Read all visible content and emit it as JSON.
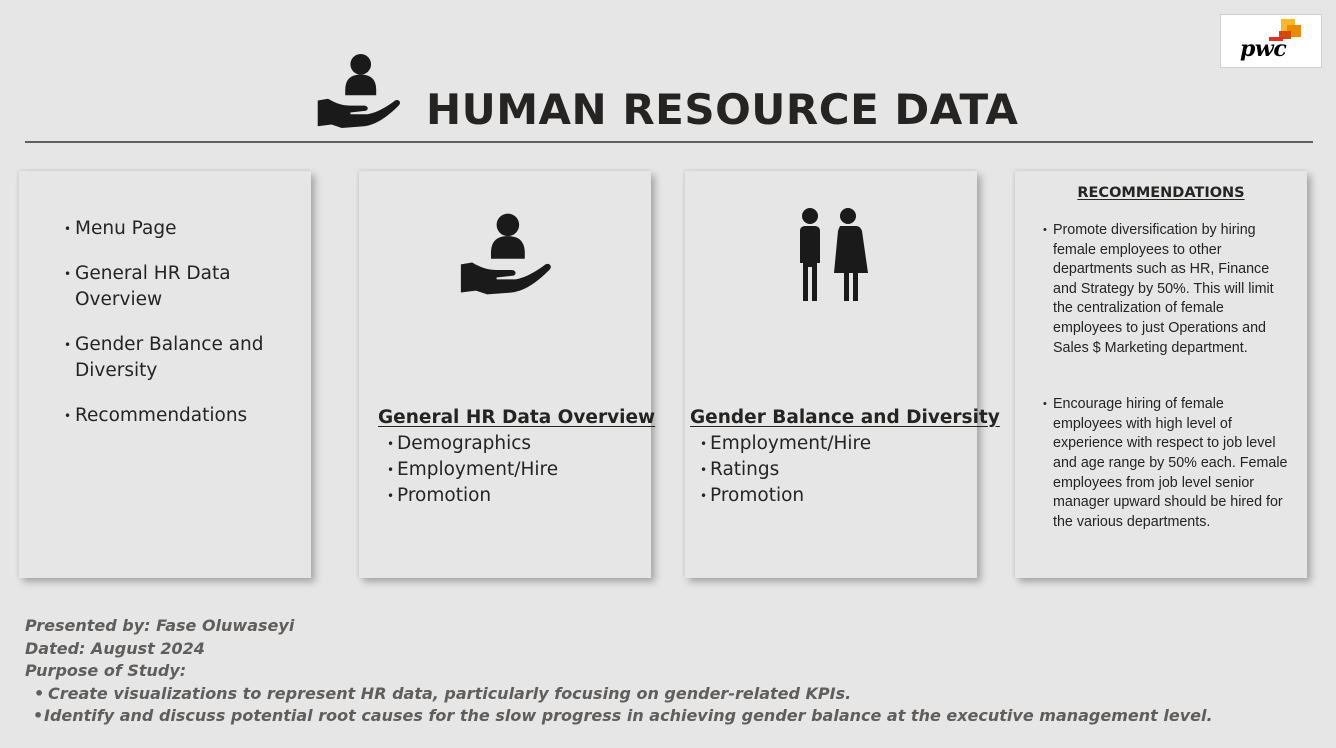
{
  "header": {
    "title": "HUMAN RESOURCE DATA",
    "title_icon": "hand-holding-person-icon",
    "logo_text": "pwc",
    "logo_colors": [
      "#fdb72e",
      "#eb8c00",
      "#e0301e",
      "#d04a02"
    ]
  },
  "menu": {
    "items": [
      {
        "label": "Menu Page"
      },
      {
        "label": "General HR Data Overview"
      },
      {
        "label": "Gender Balance and Diversity"
      },
      {
        "label": "Recommendations"
      }
    ]
  },
  "hr_card": {
    "icon": "hand-holding-person-icon",
    "heading": "General HR Data Overview",
    "items": [
      "Demographics",
      "Employment/Hire",
      "Promotion"
    ]
  },
  "gender_card": {
    "icon": "man-woman-icon",
    "heading": "Gender Balance and Diversity",
    "items": [
      "Employment/Hire",
      "Ratings",
      "Promotion"
    ]
  },
  "recommendations": {
    "heading": "RECOMMENDATIONS",
    "items": [
      "Promote diversification by hiring female employees to other departments such as HR, Finance and Strategy by 50%. This will limit the centralization of female employees to just Operations and Sales $ Marketing department.",
      "Encourage hiring of female employees with high level of experience with respect to job level and age range by 50% each. Female employees from job level senior manager upward should be hired for the various departments."
    ]
  },
  "footer": {
    "presented_by": "Presented by: Fase Oluwaseyi",
    "dated": "Dated: August 2024",
    "purpose_label": "Purpose of Study:",
    "purpose_items": [
      "Create visualizations to represent HR data, particularly focusing on gender-related KPIs.",
      "Identify and discuss potential root causes for the slow progress in achieving gender balance at the executive management level."
    ]
  },
  "colors": {
    "background": "#e6e6e6",
    "text": "#252423",
    "footer_text": "#605e5c",
    "rule": "#5f5f5f"
  }
}
